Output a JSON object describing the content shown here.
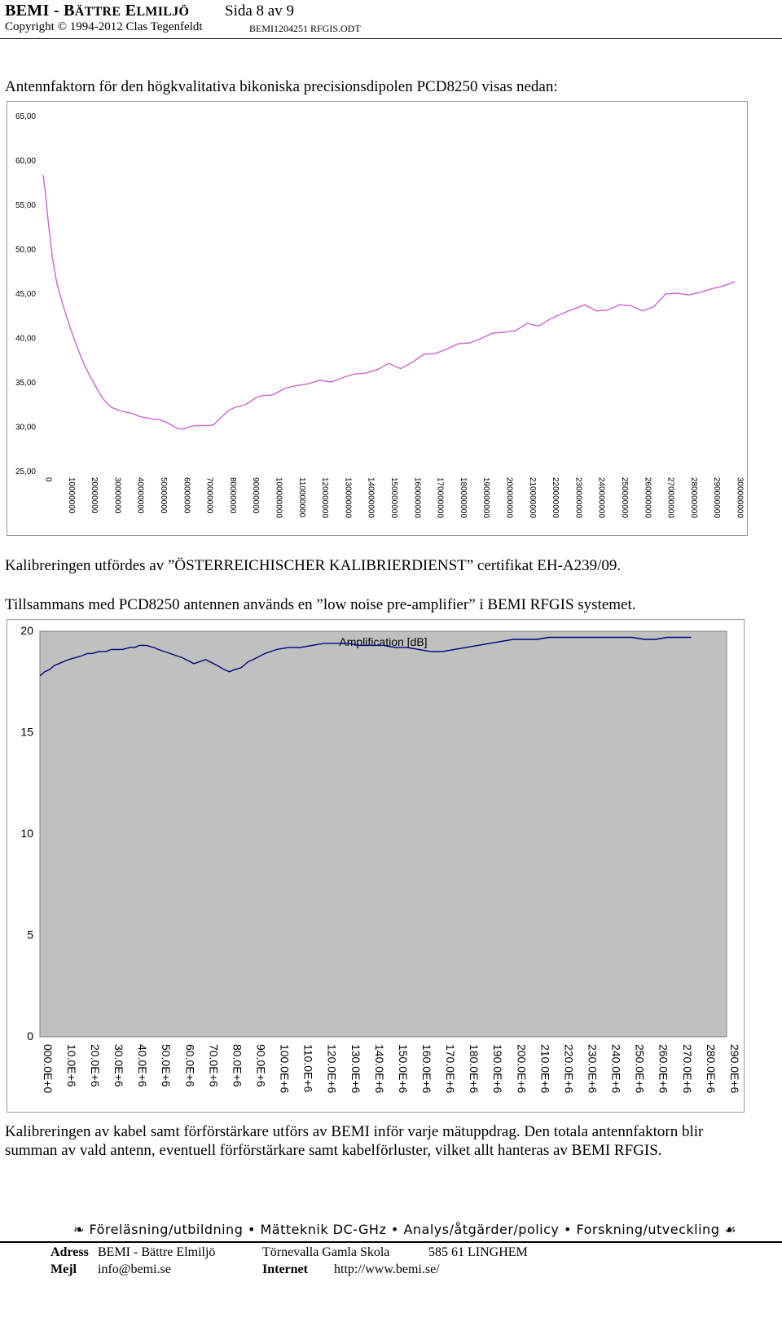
{
  "header": {
    "title_prefix": "BEMI - B",
    "title_sc1": "ÄTTRE",
    "title_mid": " E",
    "title_sc2": "LMILJÖ",
    "page": "Sida 8 av 9",
    "copyright": "Copyright © 1994-2012 Clas Tegenfeldt",
    "file": "BEMI1204251 RFGIS.ODT"
  },
  "intro": "Antennfaktorn för den högkvalitativa bikoniska precisionsdipolen PCD8250 visas nedan:",
  "para1": "Kalibreringen utfördes av ”ÖSTERREICHISCHER KALIBRIERDIENST” certifikat EH-A239/09.",
  "para2": "Tillsammans med PCD8250 antennen används en ”low noise pre-amplifier” i BEMI RFGIS systemet.",
  "para3_line1": "Kalibreringen av kabel samt förförstärkare utförs av BEMI inför varje mätuppdrag. Den totala antennfaktorn blir",
  "para3_line2": "summan av vald antenn, eventuell förförstärkare samt kabelförluster, vilket allt hanteras av BEMI RFGIS.",
  "footer": {
    "motto": "Föreläsning/utbildning • Mätteknik DC-GHz • Analys/åtgärder/policy • Forskning/utveckling",
    "address_label": "Adress",
    "address_value": "BEMI - Bättre Elmiljö",
    "address_street": "Törnevalla Gamla Skola",
    "address_zip": "585 61  LINGHEM",
    "mail_label": "Mejl",
    "mail_value": "info@bemi.se",
    "internet_label": "Internet",
    "internet_value": "http://www.bemi.se/"
  },
  "chart_data": [
    {
      "type": "line",
      "title": "",
      "xlabel": "",
      "ylabel": "",
      "ylim": [
        25,
        65
      ],
      "xlim": [
        0,
        300000000
      ],
      "yticks": [
        "65,00",
        "60,00",
        "55,00",
        "50,00",
        "45,00",
        "40,00",
        "35,00",
        "30,00",
        "25,00"
      ],
      "xticks": [
        "0",
        "10000000",
        "20000000",
        "30000000",
        "40000000",
        "50000000",
        "60000000",
        "70000000",
        "80000000",
        "90000000",
        "100000000",
        "110000000",
        "120000000",
        "130000000",
        "140000000",
        "150000000",
        "160000000",
        "170000000",
        "180000000",
        "190000000",
        "200000000",
        "210000000",
        "220000000",
        "230000000",
        "240000000",
        "250000000",
        "260000000",
        "270000000",
        "280000000",
        "290000000",
        "300000000"
      ],
      "grid": false,
      "line_color": "#cc66cc",
      "x": [
        0,
        1000000,
        2000000,
        4000000,
        6000000,
        8000000,
        10000000,
        12000000,
        14000000,
        16000000,
        18000000,
        20000000,
        22000000,
        24000000,
        26000000,
        28000000,
        30000000,
        32000000,
        34000000,
        36000000,
        38000000,
        40000000,
        42000000,
        44000000,
        46000000,
        48000000,
        50000000,
        52000000,
        54000000,
        56000000,
        58000000,
        60000000,
        62000000,
        64000000,
        66000000,
        68000000,
        70000000,
        72000000,
        74000000,
        76000000,
        78000000,
        80000000,
        82000000,
        84000000,
        86000000,
        88000000,
        90000000,
        92000000,
        94000000,
        96000000,
        98000000,
        100000000,
        105000000,
        110000000,
        115000000,
        120000000,
        125000000,
        130000000,
        135000000,
        140000000,
        145000000,
        150000000,
        155000000,
        160000000,
        165000000,
        170000000,
        175000000,
        180000000,
        185000000,
        190000000,
        195000000,
        200000000,
        205000000,
        210000000,
        215000000,
        220000000,
        225000000,
        230000000,
        235000000,
        240000000,
        245000000,
        250000000,
        255000000,
        260000000,
        265000000,
        270000000,
        275000000,
        280000000,
        285000000,
        290000000,
        295000000,
        300000000
      ],
      "values": [
        58.3,
        56.2,
        53.5,
        49.0,
        46.0,
        44.2,
        42.5,
        40.9,
        39.5,
        38.1,
        36.9,
        35.8,
        34.9,
        33.9,
        33.1,
        32.5,
        32.1,
        31.9,
        31.7,
        31.6,
        31.5,
        31.3,
        31.1,
        31.0,
        30.9,
        30.8,
        30.8,
        30.6,
        30.4,
        30.1,
        29.8,
        29.7,
        29.8,
        30.0,
        30.1,
        30.1,
        30.1,
        30.1,
        30.2,
        30.7,
        31.2,
        31.7,
        32.0,
        32.2,
        32.3,
        32.5,
        32.8,
        33.2,
        33.4,
        33.5,
        33.5,
        33.6,
        34.3,
        34.6,
        34.8,
        35.2,
        35.0,
        35.5,
        35.9,
        36.0,
        36.4,
        37.1,
        36.5,
        37.2,
        38.1,
        38.2,
        38.7,
        39.3,
        39.4,
        39.9,
        40.5,
        40.6,
        40.8,
        41.6,
        41.3,
        42.1,
        42.7,
        43.2,
        43.7,
        43.0,
        43.1,
        43.7,
        43.6,
        43.0,
        43.5,
        44.9,
        45.0,
        44.8,
        45.1,
        45.5,
        45.8,
        46.3
      ]
    },
    {
      "type": "line",
      "title": "Amplification [dB]",
      "xlabel": "",
      "ylabel": "",
      "ylim": [
        0,
        20
      ],
      "xlim": [
        0,
        290000000
      ],
      "yticks": [
        "20",
        "15",
        "10",
        "5",
        "0"
      ],
      "xticks": [
        "000.0E+0",
        "10.0E+6",
        "20.0E+6",
        "30.0E+6",
        "40.0E+6",
        "50.0E+6",
        "60.0E+6",
        "70.0E+6",
        "80.0E+6",
        "90.0E+6",
        "100.0E+6",
        "110.0E+6",
        "120.0E+6",
        "130.0E+6",
        "140.0E+6",
        "150.0E+6",
        "160.0E+6",
        "170.0E+6",
        "180.0E+6",
        "190.0E+6",
        "200.0E+6",
        "210.0E+6",
        "220.0E+6",
        "230.0E+6",
        "240.0E+6",
        "250.0E+6",
        "260.0E+6",
        "270.0E+6",
        "280.0E+6",
        "290.0E+6"
      ],
      "grid": false,
      "background": "#c0c0c0",
      "line_color": "#00007f",
      "x": [
        0,
        2000000,
        4000000,
        6000000,
        8000000,
        10000000,
        12000000,
        15000000,
        18000000,
        20000000,
        22000000,
        25000000,
        28000000,
        30000000,
        35000000,
        38000000,
        40000000,
        42000000,
        45000000,
        48000000,
        50000000,
        55000000,
        60000000,
        65000000,
        70000000,
        75000000,
        78000000,
        80000000,
        82000000,
        85000000,
        88000000,
        90000000,
        95000000,
        100000000,
        105000000,
        110000000,
        115000000,
        120000000,
        125000000,
        130000000,
        135000000,
        140000000,
        145000000,
        150000000,
        155000000,
        160000000,
        165000000,
        170000000,
        175000000,
        180000000,
        185000000,
        190000000,
        195000000,
        200000000,
        205000000,
        210000000,
        215000000,
        220000000,
        225000000,
        230000000,
        235000000,
        240000000,
        245000000,
        250000000,
        255000000,
        260000000,
        265000000,
        270000000,
        275000000
      ],
      "values": [
        17.8,
        18.0,
        18.1,
        18.3,
        18.4,
        18.5,
        18.6,
        18.7,
        18.8,
        18.9,
        18.9,
        19.0,
        19.0,
        19.1,
        19.1,
        19.2,
        19.2,
        19.3,
        19.3,
        19.2,
        19.1,
        18.9,
        18.7,
        18.4,
        18.6,
        18.3,
        18.1,
        18.0,
        18.1,
        18.2,
        18.5,
        18.6,
        18.9,
        19.1,
        19.2,
        19.2,
        19.3,
        19.4,
        19.4,
        19.4,
        19.3,
        19.3,
        19.3,
        19.2,
        19.2,
        19.1,
        19.0,
        19.0,
        19.1,
        19.2,
        19.3,
        19.4,
        19.5,
        19.6,
        19.6,
        19.6,
        19.7,
        19.7,
        19.7,
        19.7,
        19.7,
        19.7,
        19.7,
        19.7,
        19.6,
        19.6,
        19.7,
        19.7,
        19.7
      ]
    }
  ]
}
